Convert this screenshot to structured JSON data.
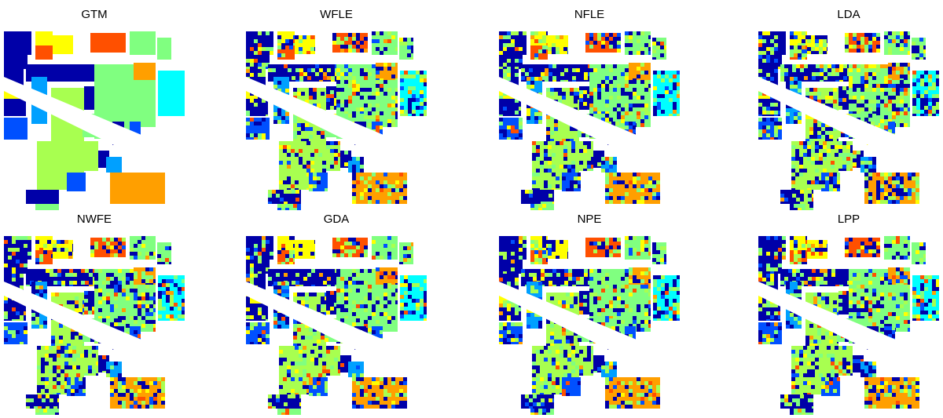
{
  "figure": {
    "panels": [
      {
        "title": "GTM",
        "style": "ground-truth"
      },
      {
        "title": "WFLE",
        "style": "noisy"
      },
      {
        "title": "NFLE",
        "style": "noisy"
      },
      {
        "title": "LDA",
        "style": "very-noisy"
      },
      {
        "title": "NWFE",
        "style": "noisy"
      },
      {
        "title": "GDA",
        "style": "noisy"
      },
      {
        "title": "NPE",
        "style": "noisy"
      },
      {
        "title": "LPP",
        "style": "noisy"
      }
    ],
    "class_colors": [
      "#0000a8",
      "#0050ff",
      "#00a0ff",
      "#00ffff",
      "#80ff80",
      "#a8ff50",
      "#ffff00",
      "#ff9f00",
      "#ff5000",
      "#e02020"
    ]
  }
}
